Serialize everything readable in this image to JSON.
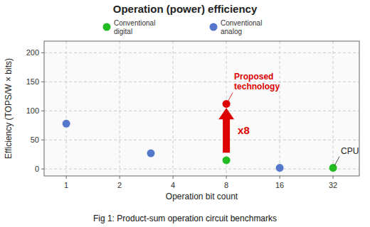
{
  "chart_data": {
    "type": "scatter",
    "title": "Operation (power) efficiency",
    "xlabel": "Operation bit count",
    "ylabel": "Efficiency (TOPS/W × bits)",
    "caption": "Fig 1:  Product-sum operation circuit benchmarks",
    "log": "x",
    "grid": true,
    "xlim": [
      0.75,
      45
    ],
    "ylim": [
      -12,
      220
    ],
    "xticks": [
      1,
      2,
      4,
      8,
      16,
      32
    ],
    "yticks": [
      0,
      50,
      100,
      150,
      200
    ],
    "series": [
      {
        "name": "Conventional\ndigital",
        "color": "#22bb22",
        "x": [
          8,
          32
        ],
        "values": [
          15,
          2
        ]
      },
      {
        "name": "Conventional\nanalog",
        "color": "#5577cc",
        "x": [
          1,
          3,
          16
        ],
        "values": [
          78,
          27,
          2
        ]
      },
      {
        "color": "#dd0000",
        "x": [
          8
        ],
        "values": [
          112
        ]
      }
    ],
    "annotations": [
      {
        "text": "Proposed\ntechnology",
        "x": 8,
        "y": 112,
        "color": "#dd0000"
      },
      {
        "type": "arrow",
        "text": "x8",
        "x": 8,
        "y_from": 28,
        "y_to": 105,
        "color": "#dd0000"
      },
      {
        "text": "CPU",
        "x": 32,
        "y": 2
      }
    ]
  }
}
